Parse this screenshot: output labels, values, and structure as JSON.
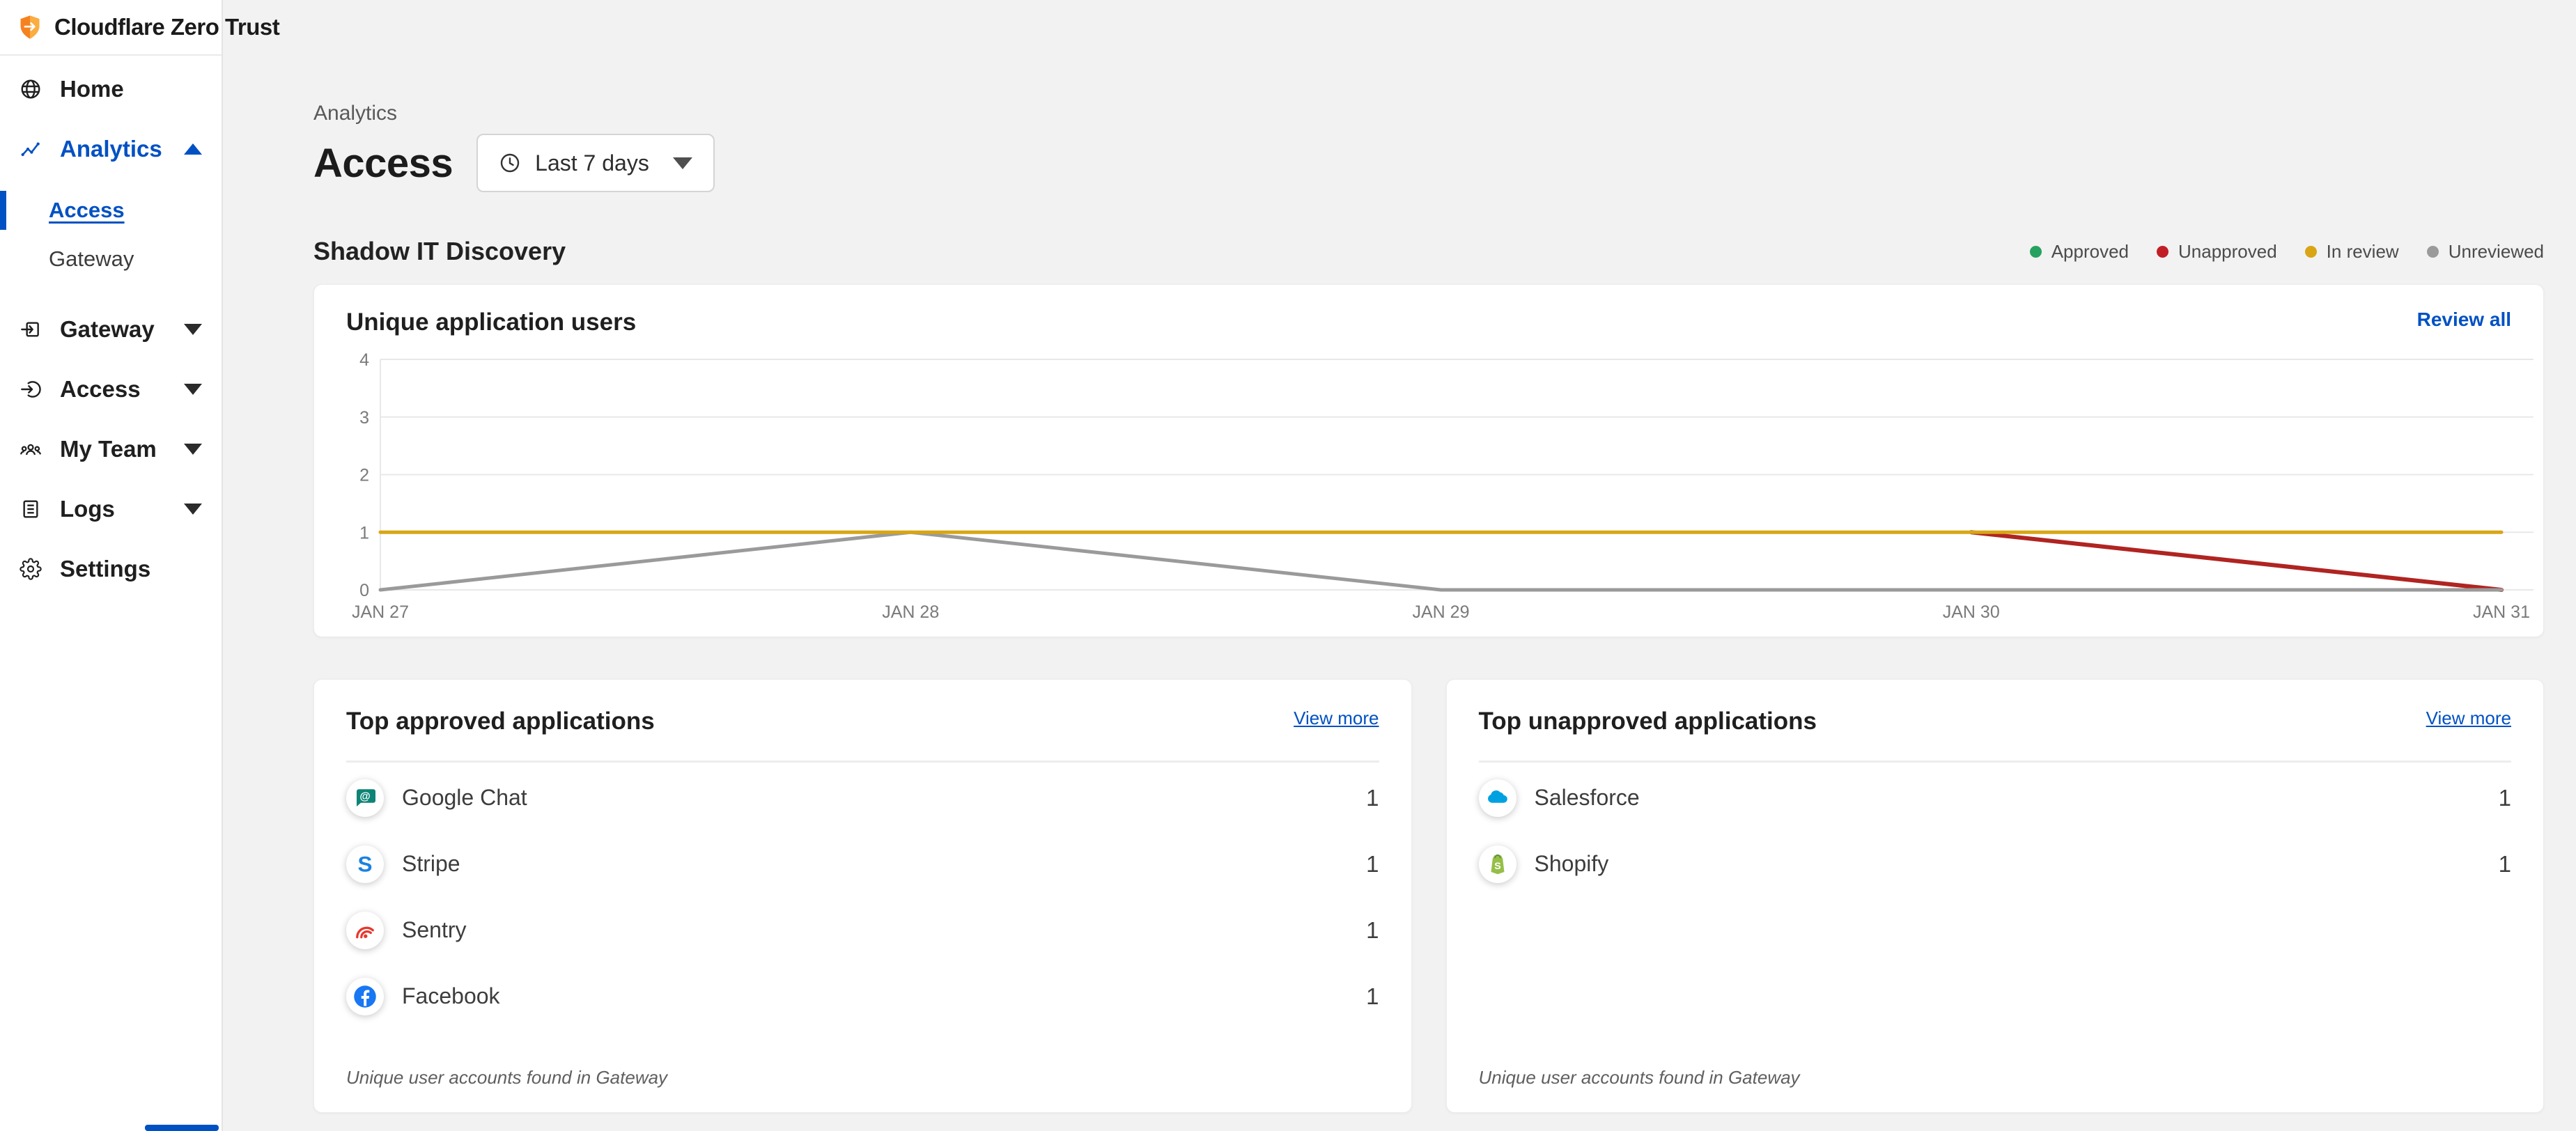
{
  "app": {
    "title": "Cloudflare Zero Trust"
  },
  "sidebar": {
    "items": [
      {
        "label": "Home",
        "icon": "globe-icon"
      },
      {
        "label": "Analytics",
        "icon": "analytics-icon",
        "expanded": true,
        "children": [
          {
            "label": "Access",
            "active": true
          },
          {
            "label": "Gateway",
            "active": false
          }
        ]
      },
      {
        "label": "Gateway",
        "icon": "gateway-icon"
      },
      {
        "label": "Access",
        "icon": "access-icon"
      },
      {
        "label": "My Team",
        "icon": "team-icon"
      },
      {
        "label": "Logs",
        "icon": "logs-icon"
      },
      {
        "label": "Settings",
        "icon": "gear-icon"
      }
    ]
  },
  "header": {
    "breadcrumb": "Analytics",
    "title": "Access",
    "time_range": {
      "label": "Last 7 days",
      "icon": "clock-icon"
    }
  },
  "shadow_section": {
    "title": "Shadow IT Discovery",
    "legend": [
      {
        "label": "Approved",
        "color": "#27a15f"
      },
      {
        "label": "Unapproved",
        "color": "#c21e25"
      },
      {
        "label": "In review",
        "color": "#d9a514"
      },
      {
        "label": "Unreviewed",
        "color": "#9a9a9a"
      }
    ]
  },
  "chart_card": {
    "title": "Unique application users",
    "action": "Review all",
    "chart_data": {
      "type": "line",
      "x": [
        "JAN 27",
        "JAN 28",
        "JAN 29",
        "JAN 30",
        "JAN 31"
      ],
      "series": [
        {
          "name": "Approved",
          "color": "#27a15f",
          "values": [
            null,
            null,
            null,
            null,
            null
          ]
        },
        {
          "name": "Unapproved",
          "color": "#b02421",
          "values": [
            null,
            null,
            null,
            1,
            0
          ]
        },
        {
          "name": "Unreviewed",
          "color": "#9a9a9a",
          "values": [
            0,
            1,
            0,
            0,
            0
          ]
        },
        {
          "name": "In review",
          "color": "#d9a514",
          "values": [
            1,
            1,
            1,
            1,
            1
          ]
        }
      ],
      "ylim": [
        0,
        4
      ],
      "yticks": [
        0,
        1,
        2,
        3,
        4
      ],
      "grid": "horizontal",
      "legend_position": "top-right-of-section"
    }
  },
  "approved_card": {
    "title": "Top approved applications",
    "action": "View more",
    "rows": [
      {
        "name": "Google Chat",
        "value": "1",
        "icon": "google-chat-icon",
        "color": "#0e8476"
      },
      {
        "name": "Stripe",
        "value": "1",
        "icon": "stripe-icon",
        "color": "#1a82e2"
      },
      {
        "name": "Sentry",
        "value": "1",
        "icon": "sentry-icon",
        "color": "#e8372c"
      },
      {
        "name": "Facebook",
        "value": "1",
        "icon": "facebook-icon",
        "color": "#1877f2"
      }
    ],
    "footnote": "Unique user accounts found in Gateway"
  },
  "unapproved_card": {
    "title": "Top unapproved applications",
    "action": "View more",
    "rows": [
      {
        "name": "Salesforce",
        "value": "1",
        "icon": "salesforce-icon",
        "color": "#00a1e0"
      },
      {
        "name": "Shopify",
        "value": "1",
        "icon": "shopify-icon",
        "color": "#95bf47"
      }
    ],
    "footnote": "Unique user accounts found in Gateway"
  }
}
